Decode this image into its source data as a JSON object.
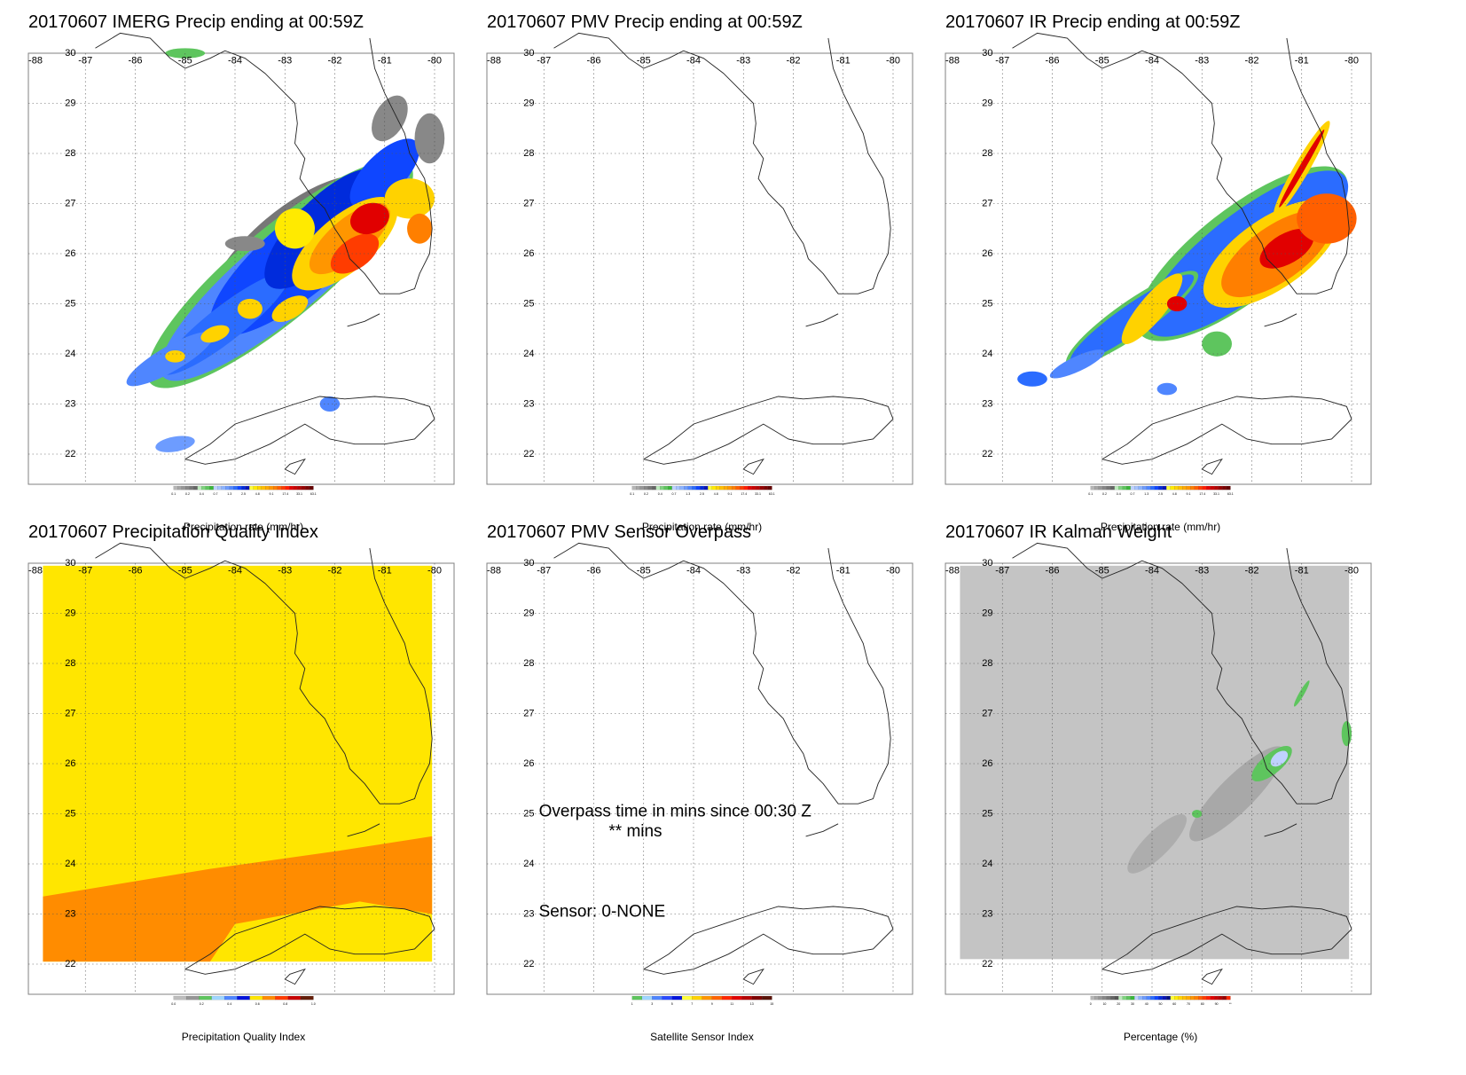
{
  "date": "20170607",
  "panels": [
    {
      "id": "imerg",
      "title": "20170607 IMERG Precip ending at 00:59Z",
      "field": "imerg",
      "colorbar": {
        "colors": [
          "#b6b6b6",
          "#a6a6a6",
          "#969696",
          "#888888",
          "#777777",
          "#656565",
          "#bdebbd",
          "#7fd47f",
          "#5ec55e",
          "#3ab73a",
          "#bfd2ff",
          "#a6c3ff",
          "#8cb3ff",
          "#6d9cff",
          "#4f86ff",
          "#2b6cff",
          "#0f46ff",
          "#002bdc",
          "#0a16b4",
          "#ffff3c",
          "#ffea00",
          "#ffd200",
          "#ffbe00",
          "#ffaa00",
          "#ff9600",
          "#ff7f00",
          "#ff5f00",
          "#ff3c00",
          "#ff1e00",
          "#e10000",
          "#c80000",
          "#b40000",
          "#960000",
          "#7d0000",
          "#640000"
        ],
        "tick_labels": [
          "0.1",
          "0.2",
          "0.4",
          "0.7",
          "1.3",
          "2.5",
          "4.8",
          "9.1",
          "17.4",
          "33.1",
          "63.1"
        ],
        "label": "Precipitation rate (mm/hr)"
      }
    },
    {
      "id": "pmv",
      "title": "20170607 PMV Precip ending at 00:59Z",
      "field": "none",
      "colorbar": {
        "colors": [
          "#b6b6b6",
          "#a6a6a6",
          "#969696",
          "#888888",
          "#777777",
          "#656565",
          "#bdebbd",
          "#7fd47f",
          "#5ec55e",
          "#3ab73a",
          "#bfd2ff",
          "#a6c3ff",
          "#8cb3ff",
          "#6d9cff",
          "#4f86ff",
          "#2b6cff",
          "#0f46ff",
          "#002bdc",
          "#0a16b4",
          "#ffff3c",
          "#ffea00",
          "#ffd200",
          "#ffbe00",
          "#ffaa00",
          "#ff9600",
          "#ff7f00",
          "#ff5f00",
          "#ff3c00",
          "#ff1e00",
          "#e10000",
          "#c80000",
          "#b40000",
          "#960000",
          "#7d0000",
          "#640000"
        ],
        "tick_labels": [
          "0.1",
          "0.2",
          "0.4",
          "0.7",
          "1.3",
          "2.5",
          "4.8",
          "9.1",
          "17.4",
          "33.1",
          "63.1"
        ],
        "label": "Precipitation rate (mm/hr)"
      }
    },
    {
      "id": "ir",
      "title": "20170607 IR Precip ending at 00:59Z",
      "field": "ir",
      "colorbar": {
        "colors": [
          "#b6b6b6",
          "#a6a6a6",
          "#969696",
          "#888888",
          "#777777",
          "#656565",
          "#bdebbd",
          "#7fd47f",
          "#5ec55e",
          "#3ab73a",
          "#bfd2ff",
          "#a6c3ff",
          "#8cb3ff",
          "#6d9cff",
          "#4f86ff",
          "#2b6cff",
          "#0f46ff",
          "#002bdc",
          "#0a16b4",
          "#ffff3c",
          "#ffea00",
          "#ffd200",
          "#ffbe00",
          "#ffaa00",
          "#ff9600",
          "#ff7f00",
          "#ff5f00",
          "#ff3c00",
          "#ff1e00",
          "#e10000",
          "#c80000",
          "#b40000",
          "#960000",
          "#7d0000",
          "#640000"
        ],
        "tick_labels": [
          "0.1",
          "0.2",
          "0.4",
          "0.7",
          "1.3",
          "2.5",
          "4.8",
          "9.1",
          "17.4",
          "33.1",
          "63.1"
        ],
        "label": "Precipitation rate (mm/hr)"
      }
    },
    {
      "id": "pqi",
      "title": "20170607 Precipitation Quality Index",
      "field": "pqi",
      "colorbar": {
        "colors": [
          "#bdbdbd",
          "#969696",
          "#5ec55e",
          "#9fd6ff",
          "#4f86ff",
          "#0014dc",
          "#ffe600",
          "#ff8c00",
          "#ff3c00",
          "#c80000",
          "#641e0a"
        ],
        "tick_labels": [
          "0.0",
          "0.2",
          "0.4",
          "0.6",
          "0.8",
          "1.0"
        ],
        "label": "Precipitation Quality Index"
      }
    },
    {
      "id": "overpass",
      "title": "20170607 PMV Sensor Overpass",
      "field": "none",
      "annotations": [
        "Overpass time in mins since 00:30 Z",
        "** mins",
        "Sensor:   0-NONE"
      ],
      "colorbar": {
        "colors": [
          "#5ec55e",
          "#9fd6ff",
          "#4f86ff",
          "#2b4cff",
          "#0014dc",
          "#ffff3c",
          "#ffd200",
          "#ff9600",
          "#ff6400",
          "#ff2800",
          "#e10000",
          "#b40000",
          "#7d0000",
          "#5a140a"
        ],
        "tick_labels": [
          "1",
          "3",
          "5",
          "7",
          "9",
          "11",
          "13",
          "15"
        ],
        "label": "Satellite Sensor Index"
      }
    },
    {
      "id": "kalman",
      "title": "20170607 IR Kalman Weight",
      "field": "kalman",
      "colorbar": {
        "colors": [
          "#b6b6b6",
          "#a6a6a6",
          "#969696",
          "#888888",
          "#777777",
          "#656565",
          "#555555",
          "#bdebbd",
          "#7fd47f",
          "#5ec55e",
          "#3ab73a",
          "#bfd2ff",
          "#8cb3ff",
          "#6d9cff",
          "#4f86ff",
          "#2b6cff",
          "#0f46ff",
          "#002bdc",
          "#0a16b4",
          "#001080",
          "#ffff3c",
          "#ffea00",
          "#ffd200",
          "#ffbe00",
          "#ffaa00",
          "#ff9600",
          "#ff7f00",
          "#ff5f00",
          "#ff3c00",
          "#ff1e00",
          "#e10000",
          "#c80000",
          "#b40000",
          "#960000",
          "#ff2a00"
        ],
        "tick_labels": [
          "0",
          "10",
          "20",
          "30",
          "40",
          "50",
          "60",
          "70",
          "80",
          "90",
          "**"
        ],
        "label": "Percentage (%)"
      }
    }
  ],
  "map_axes": {
    "lon_labels": [
      "-88",
      "-87",
      "-86",
      "-85",
      "-84",
      "-83",
      "-82",
      "-81",
      "-80"
    ],
    "lat_labels": [
      "30",
      "29",
      "28",
      "27",
      "26",
      "25",
      "24",
      "23",
      "22"
    ]
  }
}
